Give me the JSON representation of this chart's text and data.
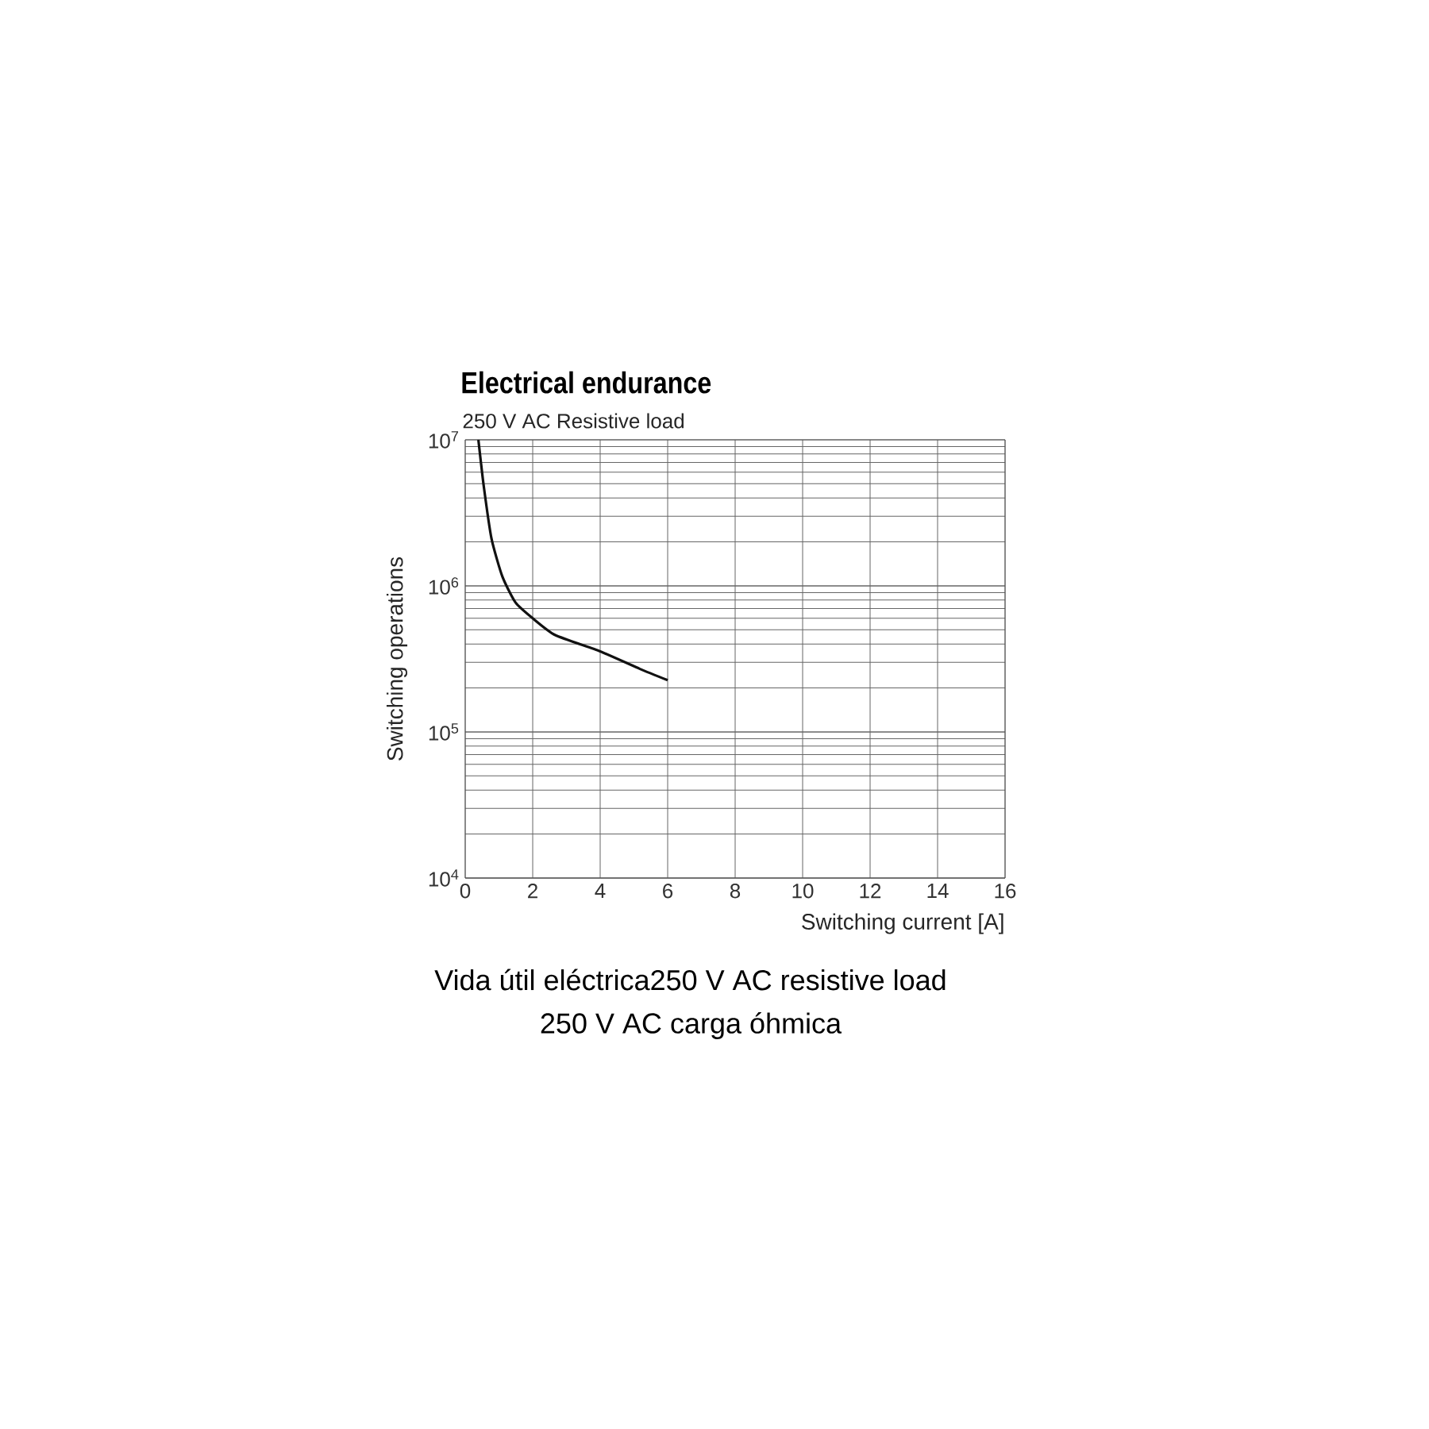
{
  "chart_data": {
    "type": "line",
    "title": "Electrical endurance",
    "subtitle": "250 V AC Resistive load",
    "xlabel": "Switching current [A]",
    "ylabel": "Switching operations",
    "annotations": [
      "Vida útil eléctrica250 V AC resistive load",
      "250 V AC carga óhmica"
    ],
    "x": [
      0.39,
      0.55,
      0.78,
      1.1,
      1.49,
      2.0,
      2.67,
      4.0,
      5.18,
      6.0
    ],
    "series": [
      {
        "color": "#111111",
        "values": [
          10000000,
          4800000,
          2100000,
          1160000,
          770000,
          600000,
          460000,
          356000,
          270000,
          226000
        ]
      }
    ],
    "xlim": [
      0,
      16
    ],
    "xticks": [
      0,
      2,
      4,
      6,
      8,
      10,
      12,
      14,
      16
    ],
    "ylim": [
      10000,
      10000000
    ],
    "yticks": [
      {
        "value": 10000,
        "label": "10$^{4}$"
      },
      {
        "value": 100000,
        "label": "10$^{5}$"
      },
      {
        "value": 1000000,
        "label": "10$^{6}$"
      },
      {
        "value": 10000000,
        "label": "10$^{7}$"
      }
    ],
    "log": "y",
    "grid": true,
    "marker": "none",
    "line_style": "solid"
  }
}
